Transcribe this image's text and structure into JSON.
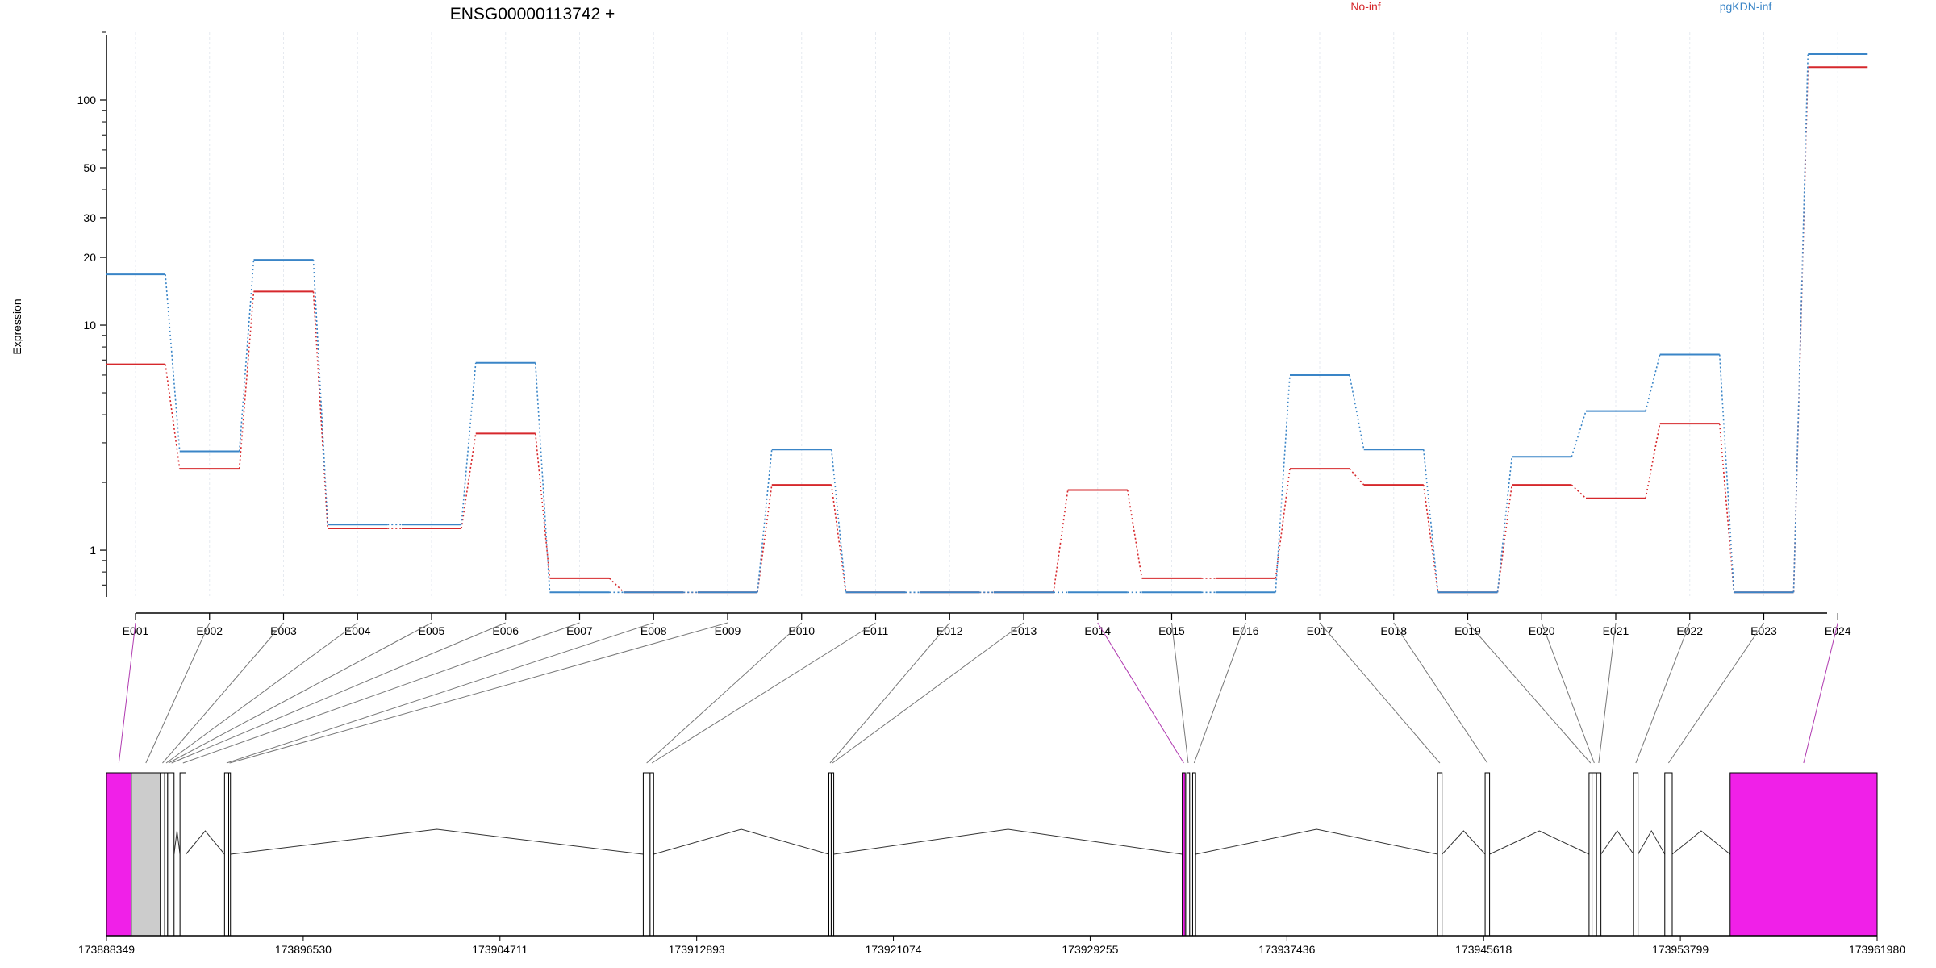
{
  "chart_data": {
    "type": "line",
    "title": "ENSG00000113742 +",
    "ylabel": "Expression",
    "y_scale": "log",
    "ylim": [
      0.62,
      200
    ],
    "y_ticks": [
      {
        "value": 1,
        "label": "1"
      },
      {
        "value": 10,
        "label": "10"
      },
      {
        "value": 20,
        "label": "20"
      },
      {
        "value": 30,
        "label": "30"
      },
      {
        "value": 50,
        "label": "50"
      },
      {
        "value": 100,
        "label": "100"
      }
    ],
    "categories": [
      "E001",
      "E002",
      "E003",
      "E004",
      "E005",
      "E006",
      "E007",
      "E008",
      "E009",
      "E010",
      "E011",
      "E012",
      "E013",
      "E014",
      "E015",
      "E016",
      "E017",
      "E018",
      "E019",
      "E020",
      "E021",
      "E022",
      "E023",
      "E024"
    ],
    "series": [
      {
        "name": "No-inf",
        "color": "#d6282c",
        "values": [
          6.7,
          2.3,
          14.1,
          1.25,
          1.25,
          3.3,
          0.75,
          0.65,
          0.65,
          1.95,
          0.65,
          0.65,
          0.65,
          1.85,
          0.75,
          0.75,
          2.3,
          1.95,
          0.65,
          1.95,
          1.7,
          3.65,
          0.65,
          140
        ]
      },
      {
        "name": "pgKDN-inf",
        "color": "#3a85c7",
        "values": [
          16.8,
          2.75,
          19.5,
          1.3,
          1.3,
          6.8,
          0.65,
          0.65,
          0.65,
          2.8,
          0.65,
          0.65,
          0.65,
          0.65,
          0.65,
          0.65,
          6.0,
          2.8,
          0.65,
          2.6,
          4.15,
          7.4,
          0.65,
          160
        ]
      }
    ],
    "legend_placement": "top",
    "grid": "vertical",
    "genomic_axis": {
      "start": 173888349,
      "end": 173961980,
      "tick_labels": [
        "173888349",
        "173896530",
        "173904711",
        "173912893",
        "173921074",
        "173929255",
        "173937436",
        "173945618",
        "173953799",
        "173961980"
      ]
    },
    "exon_track": {
      "highlight_color": "#f020e8",
      "highlighted_exons": [
        "E001",
        "E014",
        "E024"
      ]
    }
  }
}
